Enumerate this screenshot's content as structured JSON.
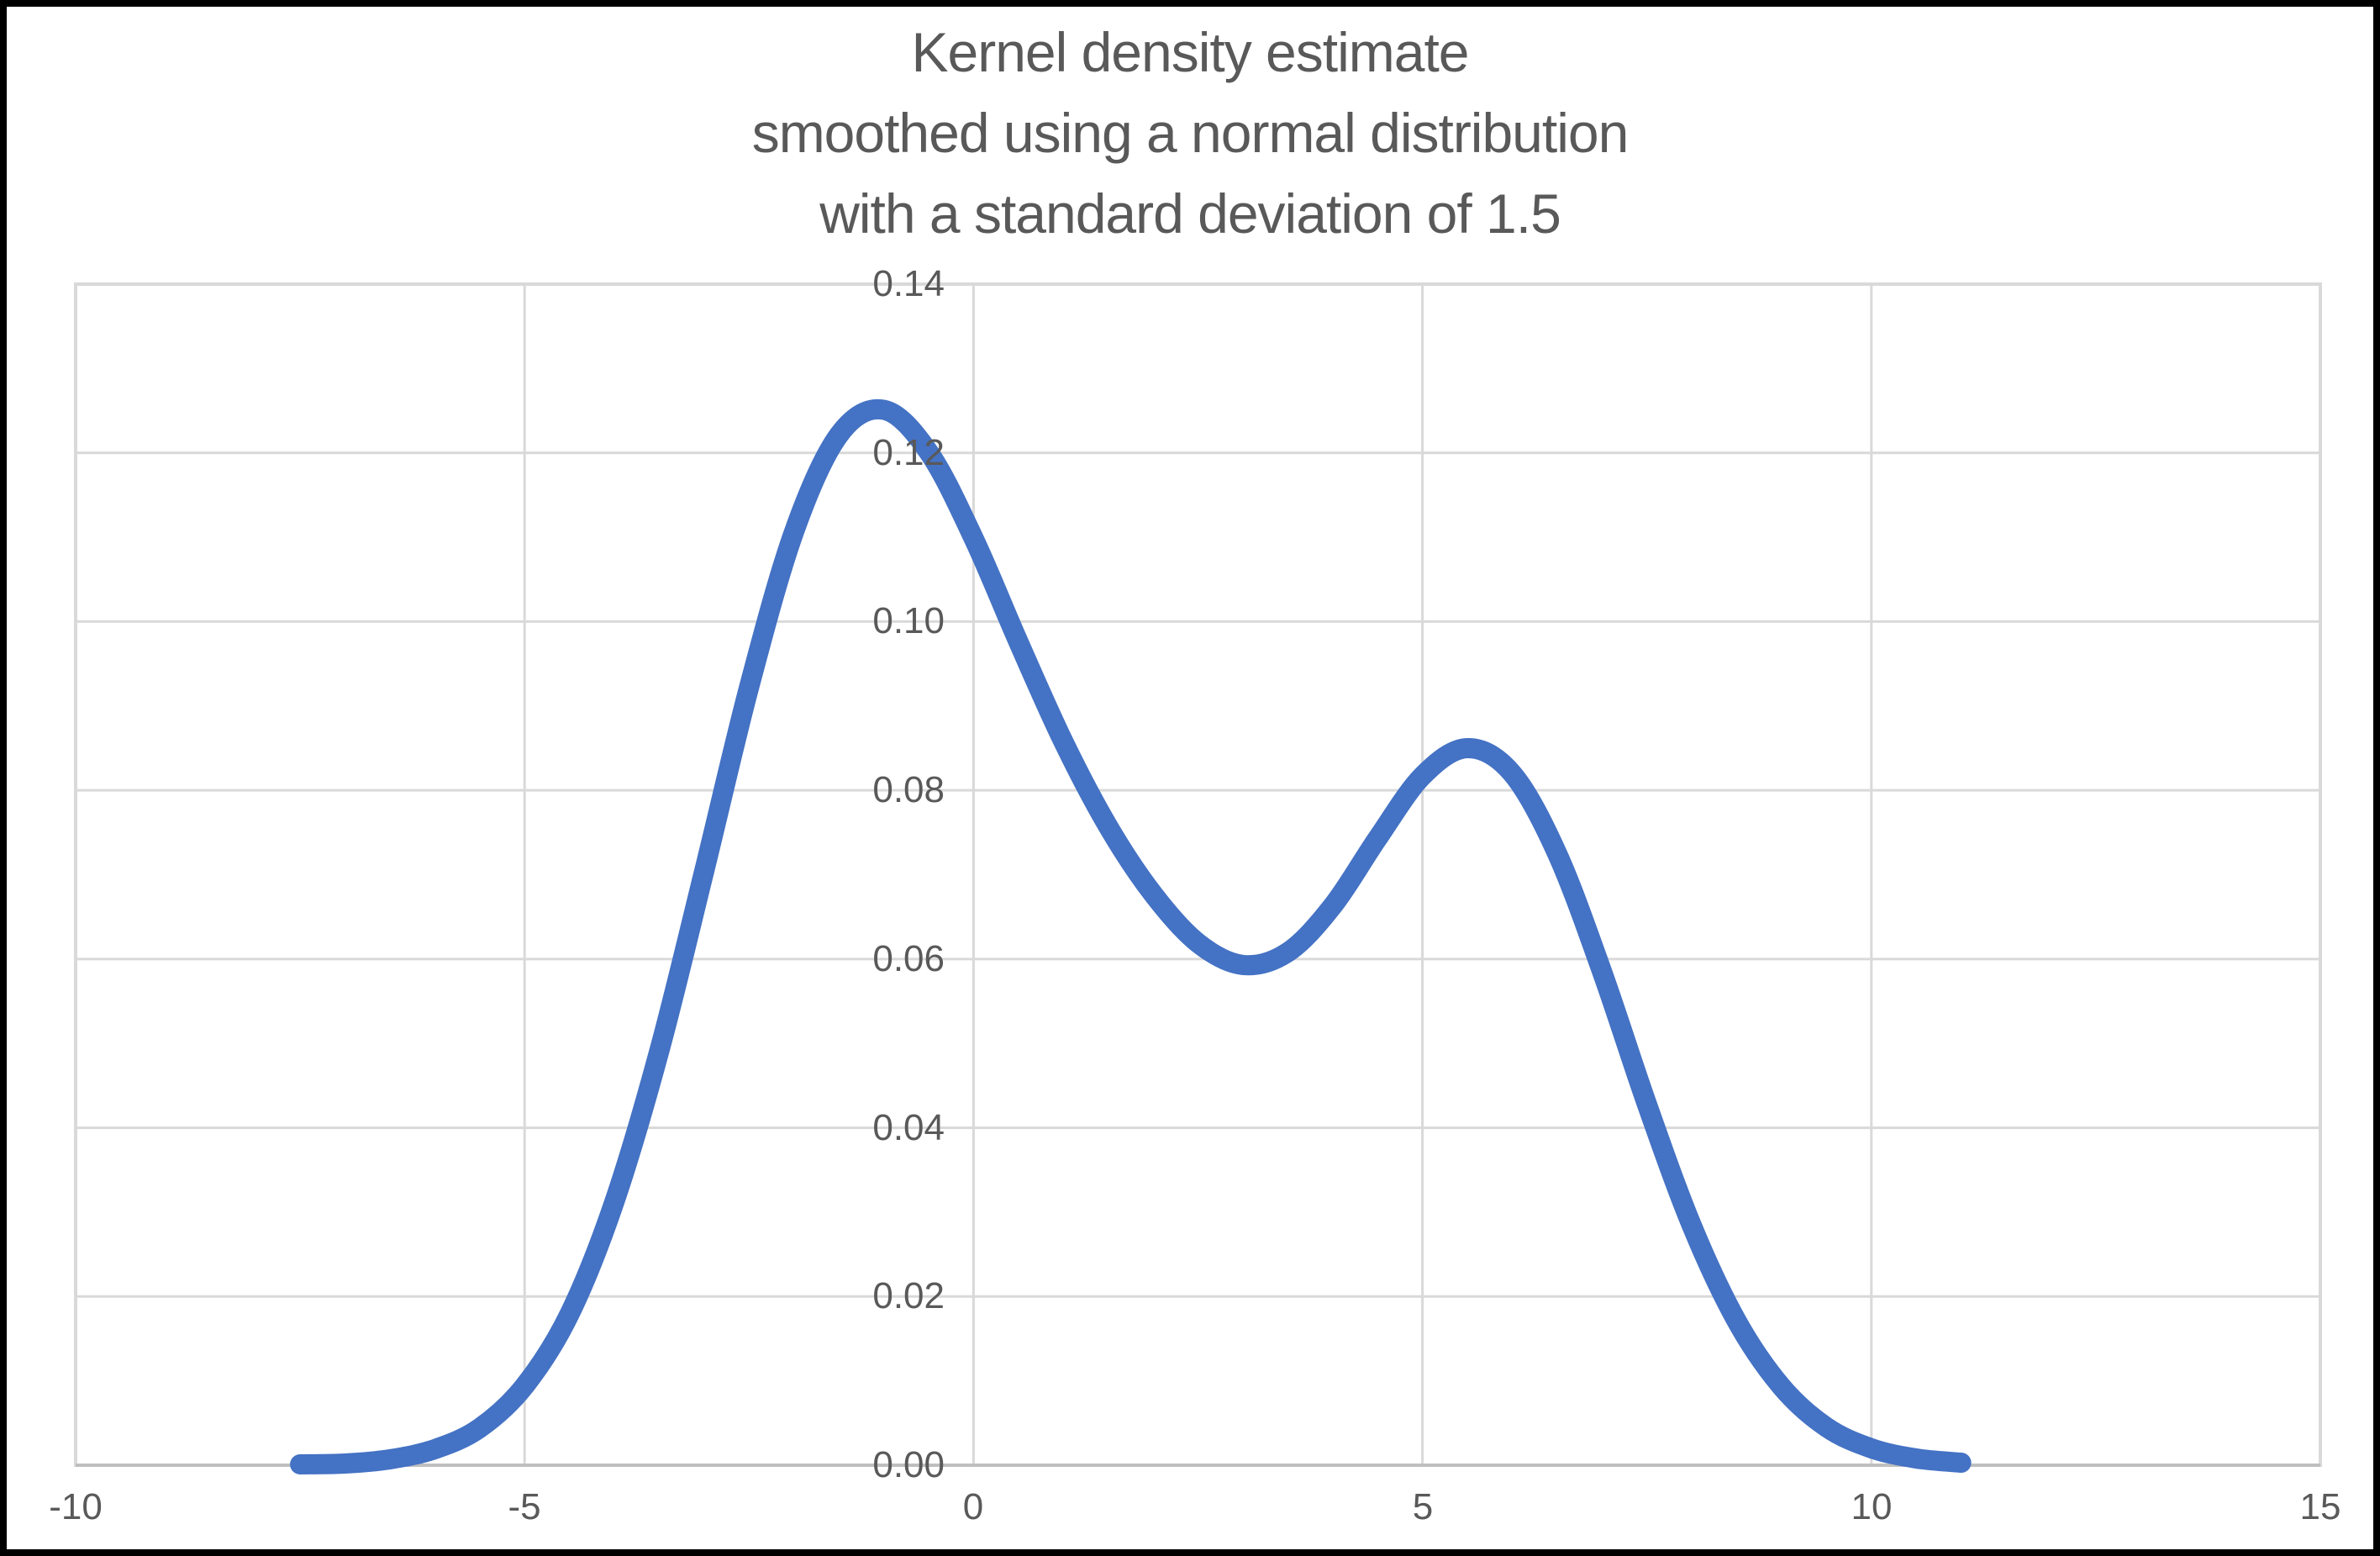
{
  "chart_data": {
    "type": "line",
    "title_lines": [
      "Kernel density estimate",
      "smoothed using a normal distribution",
      "with a standard deviation of 1.5"
    ],
    "x_axis": {
      "min": -10,
      "max": 15,
      "tick_step": 5,
      "tick_values": [
        -10,
        -5,
        0,
        5,
        10,
        15
      ],
      "tick_labels": [
        "-10",
        "-5",
        "0",
        "5",
        "10",
        "15"
      ]
    },
    "y_axis": {
      "min": 0,
      "max": 0.14,
      "tick_step": 0.02,
      "tick_values": [
        0,
        0.02,
        0.04,
        0.06,
        0.08,
        0.1,
        0.12,
        0.14
      ],
      "tick_labels": [
        "0.00",
        "0.02",
        "0.04",
        "0.06",
        "0.08",
        "0.10",
        "0.12",
        "0.14"
      ]
    },
    "grid": true,
    "legend": "none",
    "series": [
      {
        "name": "Kernel density estimate",
        "color": "#4472C4",
        "points": [
          [
            -7.5,
            0.0001
          ],
          [
            -7.0,
            0.0002
          ],
          [
            -6.5,
            0.0007
          ],
          [
            -6.0,
            0.0019
          ],
          [
            -5.5,
            0.0044
          ],
          [
            -5.0,
            0.0094
          ],
          [
            -4.5,
            0.0179
          ],
          [
            -4.0,
            0.0312
          ],
          [
            -3.5,
            0.0491
          ],
          [
            -3.0,
            0.0704
          ],
          [
            -2.5,
            0.0922
          ],
          [
            -2.0,
            0.1106
          ],
          [
            -1.5,
            0.1221
          ],
          [
            -1.0,
            0.1251
          ],
          [
            -0.5,
            0.1201
          ],
          [
            0.0,
            0.1099
          ],
          [
            0.5,
            0.0976
          ],
          [
            1.0,
            0.0858
          ],
          [
            1.5,
            0.0757
          ],
          [
            2.0,
            0.0677
          ],
          [
            2.5,
            0.0619
          ],
          [
            3.0,
            0.0593
          ],
          [
            3.5,
            0.0608
          ],
          [
            4.0,
            0.0663
          ],
          [
            4.5,
            0.0743
          ],
          [
            5.0,
            0.0817
          ],
          [
            5.5,
            0.085
          ],
          [
            6.0,
            0.082
          ],
          [
            6.5,
            0.0725
          ],
          [
            7.0,
            0.0585
          ],
          [
            7.5,
            0.0428
          ],
          [
            8.0,
            0.0284
          ],
          [
            8.5,
            0.0171
          ],
          [
            9.0,
            0.0093
          ],
          [
            9.5,
            0.0045
          ],
          [
            10.0,
            0.002
          ],
          [
            10.5,
            0.0008
          ],
          [
            11.0,
            0.0003
          ]
        ]
      }
    ],
    "key_points": {
      "left_peak": {
        "x": -1,
        "y": 0.125
      },
      "valley": {
        "x": 3,
        "y": 0.059
      },
      "right_peak": {
        "x": 5.5,
        "y": 0.085
      }
    }
  },
  "styles": {
    "series_color": "#4472C4",
    "gridline_color": "#D9D9D9",
    "plot_border_color": "#D9D9D9",
    "axis_line_color": "#BFBFBF",
    "text_color": "#595959",
    "background_color": "#FFFFFF",
    "frame_color": "#000000"
  }
}
